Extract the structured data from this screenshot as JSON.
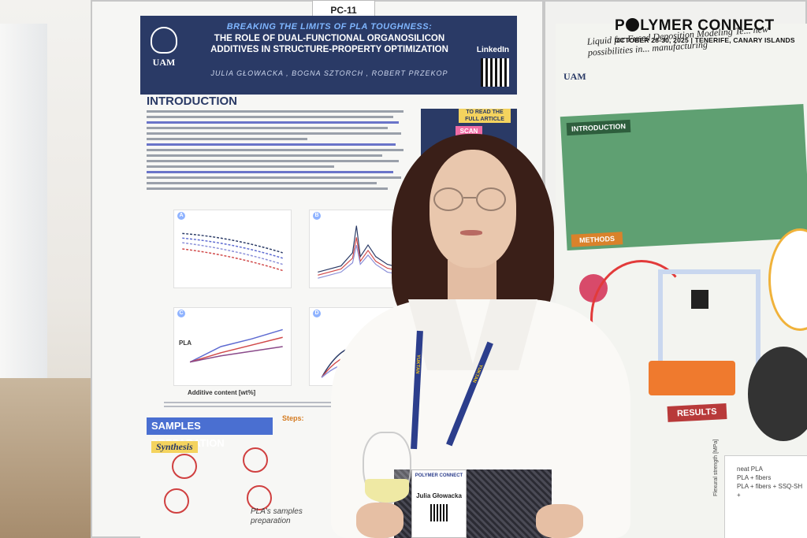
{
  "board_sign": "PC-11",
  "conference": {
    "name_part1": "P",
    "name_part2": "LYMER CONNECT",
    "date_line": "OCTOBER 28-30, 2025 | TENERIFE, CANARY ISLANDS"
  },
  "left_poster": {
    "logo_text": "UAM",
    "title_line1": "BREAKING THE LIMITS OF PLA TOUGHNESS:",
    "title_line2": "THE ROLE OF DUAL-FUNCTIONAL ORGANOSILICON",
    "title_line3": "ADDITIVES IN STRUCTURE-PROPERTY OPTIMIZATION",
    "authors": "JULIA GŁOWACKA , BOGNA SZTORCH , ROBERT PRZEKOP",
    "linkedin": "LinkedIn",
    "section_intro": "INTRODUCTION",
    "read_full": "TO READ THE FULL ARTICLE",
    "scan": "SCAN",
    "chart_letters": [
      "A",
      "B",
      "C",
      "D"
    ],
    "chart_c_label": "PLA",
    "x_axis_label": "Additive content [wt%]",
    "section_samples": "SAMPLES PREPARATION",
    "synthesis": "Synthesis",
    "steps": "Steps:",
    "preparation_line1": "PLA's samples",
    "preparation_line2": "preparation"
  },
  "right_poster": {
    "logo_text": "UAM",
    "title": "Liquid for Fused Deposition Modeling Te... new possibilities in... manufacturing",
    "intro_badge": "INTRODUCTION",
    "methods_badge": "METHODS",
    "results_badge": "RESULTS",
    "legend": [
      "neat PLA",
      "PLA + fibers",
      "PLA + fibers + SSQ-SH +"
    ],
    "y_axis_label": "Flexural strength [MPa]"
  },
  "badge": {
    "conference": "POLYMER CONNECT",
    "name": "Julia Głowacka"
  },
  "lanyard_text": "YUKTAN"
}
